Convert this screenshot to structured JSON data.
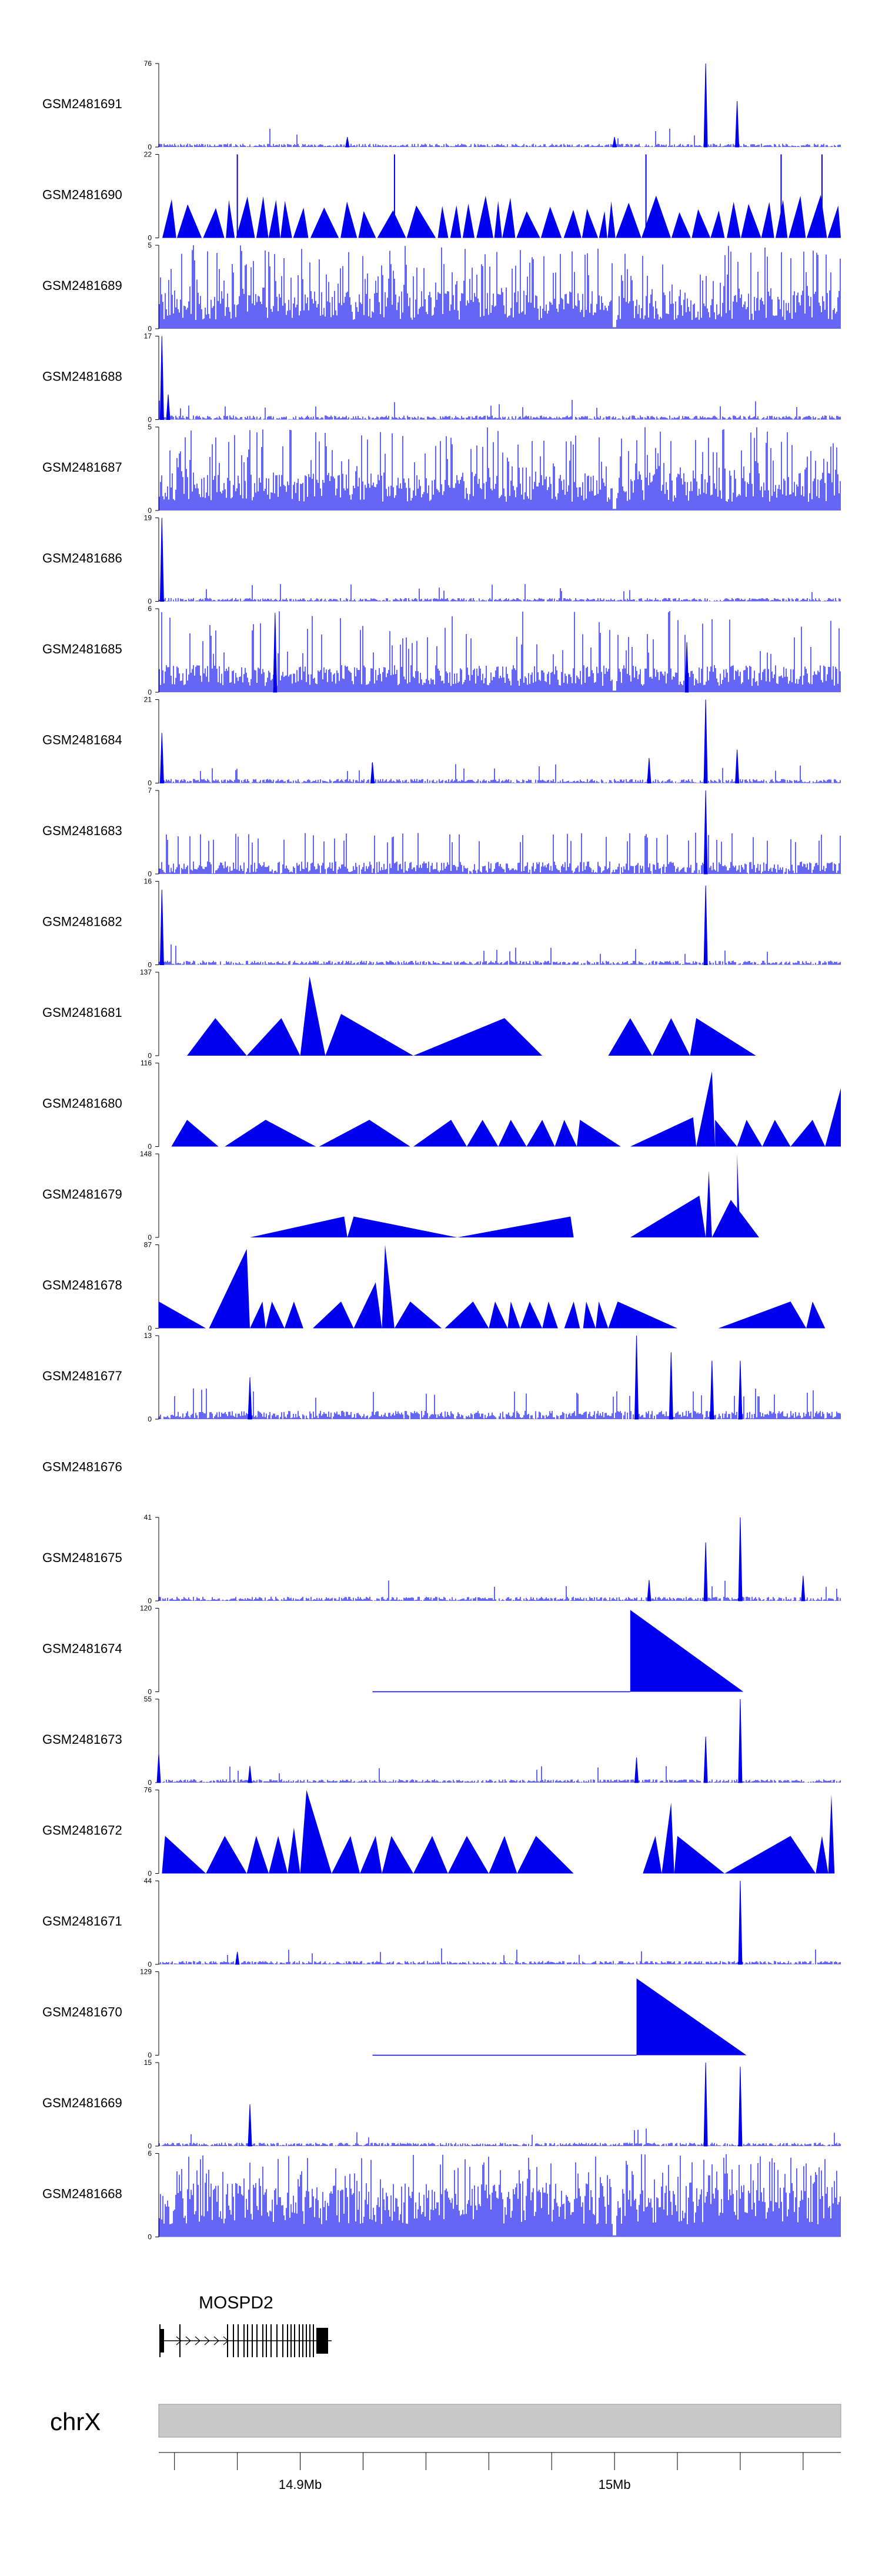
{
  "chart_data": {
    "type": "area",
    "title": "",
    "genome_region": {
      "chromosome": "chrX",
      "start_mb": 14.855,
      "end_mb": 15.072
    },
    "colors": {
      "signal": "#0000ee",
      "axis": "#000000",
      "ideogram": "#c8c8c8",
      "gene": "#000000"
    },
    "tracks": [
      {
        "name": "GSM2481691",
        "ymax": "76",
        "ymin": "0",
        "pattern": "noise",
        "base": 0.04,
        "spike_p": 0.01,
        "peaks": [
          [
            14.915,
            0.12
          ],
          [
            15.0,
            0.12
          ],
          [
            15.029,
            1.0
          ],
          [
            15.039,
            0.55
          ]
        ]
      },
      {
        "name": "GSM2481690",
        "ymax": "22",
        "ymin": "0",
        "pattern": "triangles",
        "n": 48,
        "peaks": [
          [
            14.88,
            1.0
          ],
          [
            14.93,
            1.0
          ],
          [
            15.01,
            1.0
          ],
          [
            15.053,
            1.0
          ],
          [
            15.066,
            1.0
          ]
        ]
      },
      {
        "name": "GSM2481689",
        "ymax": "5",
        "ymin": "0",
        "pattern": "dense",
        "base": 0.35,
        "spike_p": 0.3,
        "peaks": []
      },
      {
        "name": "GSM2481688",
        "ymax": "17",
        "ymin": "0",
        "pattern": "noise",
        "base": 0.05,
        "spike_p": 0.02,
        "peaks": [
          [
            14.856,
            1.0
          ],
          [
            14.858,
            0.3
          ]
        ]
      },
      {
        "name": "GSM2481687",
        "ymax": "5",
        "ymin": "0",
        "pattern": "dense",
        "base": 0.35,
        "spike_p": 0.25,
        "peaks": []
      },
      {
        "name": "GSM2481686",
        "ymax": "19",
        "ymin": "0",
        "pattern": "noise",
        "base": 0.04,
        "spike_p": 0.02,
        "peaks": [
          [
            14.856,
            1.0
          ]
        ]
      },
      {
        "name": "GSM2481685",
        "ymax": "6",
        "ymin": "0",
        "pattern": "dense",
        "base": 0.25,
        "spike_p": 0.12,
        "peaks": [
          [
            14.892,
            0.95
          ],
          [
            15.023,
            0.6
          ]
        ]
      },
      {
        "name": "GSM2481684",
        "ymax": "21",
        "ymin": "0",
        "pattern": "noise",
        "base": 0.05,
        "spike_p": 0.02,
        "peaks": [
          [
            14.856,
            0.6
          ],
          [
            14.923,
            0.25
          ],
          [
            15.011,
            0.3
          ],
          [
            15.029,
            1.0
          ],
          [
            15.039,
            0.4
          ]
        ]
      },
      {
        "name": "GSM2481683",
        "ymax": "7",
        "ymin": "0",
        "pattern": "noise",
        "base": 0.15,
        "spike_p": 0.1,
        "peaks": [
          [
            15.029,
            1.0
          ]
        ]
      },
      {
        "name": "GSM2481682",
        "ymax": "16",
        "ymin": "0",
        "pattern": "noise",
        "base": 0.05,
        "spike_p": 0.02,
        "peaks": [
          [
            14.856,
            0.9
          ],
          [
            15.029,
            0.95
          ]
        ]
      },
      {
        "name": "GSM2481681",
        "ymax": "137",
        "ymin": "0",
        "pattern": "explicit",
        "shapes": [
          [
            14.864,
            14.873,
            14.883,
            0.45
          ],
          [
            14.883,
            14.894,
            14.9,
            0.45
          ],
          [
            14.9,
            14.903,
            14.908,
            0.95
          ],
          [
            14.908,
            14.913,
            14.936,
            0.5
          ],
          [
            14.936,
            14.965,
            14.977,
            0.45
          ],
          [
            14.998,
            15.005,
            15.012,
            0.45
          ],
          [
            15.012,
            15.018,
            15.024,
            0.45
          ],
          [
            15.024,
            15.026,
            15.045,
            0.45
          ]
        ]
      },
      {
        "name": "GSM2481680",
        "ymax": "116",
        "ymin": "0",
        "pattern": "explicit",
        "shapes": [
          [
            14.859,
            14.864,
            14.874,
            0.32
          ],
          [
            14.876,
            14.889,
            14.905,
            0.32
          ],
          [
            14.906,
            14.922,
            14.935,
            0.32
          ],
          [
            14.936,
            14.948,
            14.953,
            0.32
          ],
          [
            14.953,
            14.958,
            14.963,
            0.32
          ],
          [
            14.963,
            14.967,
            14.972,
            0.32
          ],
          [
            14.972,
            14.977,
            14.981,
            0.32
          ],
          [
            14.981,
            14.984,
            14.988,
            0.32
          ],
          [
            14.988,
            14.989,
            15.002,
            0.32
          ],
          [
            15.005,
            15.025,
            15.026,
            0.35
          ],
          [
            15.026,
            15.031,
            15.032,
            0.9
          ],
          [
            15.032,
            15.032,
            15.039,
            0.32
          ],
          [
            15.039,
            15.042,
            15.047,
            0.32
          ],
          [
            15.047,
            15.051,
            15.056,
            0.32
          ],
          [
            15.056,
            15.063,
            15.067,
            0.32
          ],
          [
            15.067,
            15.072,
            15.072,
            0.7
          ]
        ]
      },
      {
        "name": "GSM2481679",
        "ymax": "148",
        "ymin": "0",
        "pattern": "explicit",
        "shapes": [
          [
            14.884,
            14.914,
            14.915,
            0.25
          ],
          [
            14.915,
            14.917,
            14.95,
            0.25
          ],
          [
            14.95,
            14.986,
            14.987,
            0.25
          ],
          [
            15.005,
            15.027,
            15.029,
            0.5
          ],
          [
            15.029,
            15.03,
            15.031,
            0.8
          ],
          [
            15.031,
            15.037,
            15.046,
            0.45
          ],
          [
            15.039,
            15.039,
            15.04,
            1.0
          ]
        ]
      },
      {
        "name": "GSM2481678",
        "ymax": "87",
        "ymin": "0",
        "pattern": "explicit",
        "shapes": [
          [
            14.855,
            14.855,
            14.87,
            0.32
          ],
          [
            14.871,
            14.883,
            14.884,
            0.95
          ],
          [
            14.884,
            14.888,
            14.889,
            0.32
          ],
          [
            14.889,
            14.891,
            14.895,
            0.32
          ],
          [
            14.895,
            14.898,
            14.901,
            0.32
          ],
          [
            14.904,
            14.913,
            14.917,
            0.32
          ],
          [
            14.917,
            14.924,
            14.926,
            0.55
          ],
          [
            14.926,
            14.927,
            14.93,
            1.0
          ],
          [
            14.93,
            14.935,
            14.945,
            0.32
          ],
          [
            14.946,
            14.955,
            14.96,
            0.32
          ],
          [
            14.96,
            14.962,
            14.966,
            0.32
          ],
          [
            14.966,
            14.967,
            14.97,
            0.32
          ],
          [
            14.97,
            14.973,
            14.977,
            0.32
          ],
          [
            14.977,
            14.979,
            14.982,
            0.32
          ],
          [
            14.984,
            14.987,
            14.989,
            0.32
          ],
          [
            14.99,
            14.991,
            14.994,
            0.32
          ],
          [
            14.994,
            14.995,
            14.998,
            0.32
          ],
          [
            14.998,
            15.001,
            15.02,
            0.32
          ],
          [
            15.033,
            15.056,
            15.061,
            0.32
          ],
          [
            15.061,
            15.063,
            15.067,
            0.32
          ]
        ]
      },
      {
        "name": "GSM2481677",
        "ymax": "13",
        "ymin": "0",
        "pattern": "noise",
        "base": 0.1,
        "spike_p": 0.06,
        "peaks": [
          [
            14.884,
            0.5
          ],
          [
            15.007,
            1.0
          ],
          [
            15.018,
            0.8
          ],
          [
            15.031,
            0.7
          ],
          [
            15.04,
            0.7
          ]
        ]
      },
      {
        "name": "GSM2481676",
        "ymax": "",
        "ymin": "",
        "pattern": "empty"
      },
      {
        "name": "GSM2481675",
        "ymax": "41",
        "ymin": "0",
        "pattern": "noise",
        "base": 0.05,
        "spike_p": 0.02,
        "peaks": [
          [
            15.011,
            0.25
          ],
          [
            15.029,
            0.7
          ],
          [
            15.04,
            1.0
          ],
          [
            15.06,
            0.3
          ]
        ]
      },
      {
        "name": "GSM2481674",
        "ymax": "120",
        "ymin": "0",
        "pattern": "explicit",
        "shapes": [
          [
            15.005,
            15.005,
            15.041,
            0.98
          ]
        ],
        "lines": [
          [
            14.923,
            15.005
          ]
        ]
      },
      {
        "name": "GSM2481673",
        "ymax": "55",
        "ymin": "0",
        "pattern": "noise",
        "base": 0.04,
        "spike_p": 0.02,
        "peaks": [
          [
            14.855,
            0.35
          ],
          [
            14.884,
            0.2
          ],
          [
            15.007,
            0.3
          ],
          [
            15.029,
            0.55
          ],
          [
            15.04,
            1.0
          ]
        ]
      },
      {
        "name": "GSM2481672",
        "ymax": "76",
        "ymin": "0",
        "pattern": "explicit",
        "shapes": [
          [
            14.856,
            14.857,
            14.87,
            0.45
          ],
          [
            14.87,
            14.876,
            14.883,
            0.45
          ],
          [
            14.883,
            14.886,
            14.89,
            0.45
          ],
          [
            14.89,
            14.893,
            14.896,
            0.45
          ],
          [
            14.896,
            14.898,
            14.9,
            0.55
          ],
          [
            14.9,
            14.902,
            14.91,
            1.0
          ],
          [
            14.91,
            14.916,
            14.919,
            0.45
          ],
          [
            14.919,
            14.924,
            14.926,
            0.45
          ],
          [
            14.926,
            14.929,
            14.936,
            0.45
          ],
          [
            14.936,
            14.942,
            14.947,
            0.45
          ],
          [
            14.947,
            14.953,
            14.96,
            0.45
          ],
          [
            14.96,
            14.965,
            14.969,
            0.45
          ],
          [
            14.969,
            14.975,
            14.987,
            0.45
          ],
          [
            15.009,
            15.013,
            15.015,
            0.45
          ],
          [
            15.015,
            15.018,
            15.019,
            0.85
          ],
          [
            15.019,
            15.02,
            15.035,
            0.45
          ],
          [
            15.035,
            15.056,
            15.064,
            0.45
          ],
          [
            15.064,
            15.066,
            15.068,
            0.45
          ],
          [
            15.068,
            15.069,
            15.07,
            0.95
          ]
        ]
      },
      {
        "name": "GSM2481671",
        "ymax": "44",
        "ymin": "0",
        "pattern": "noise",
        "base": 0.04,
        "spike_p": 0.02,
        "peaks": [
          [
            15.04,
            1.0
          ],
          [
            14.88,
            0.15
          ]
        ]
      },
      {
        "name": "GSM2481670",
        "ymax": "129",
        "ymin": "0",
        "pattern": "explicit",
        "shapes": [
          [
            15.007,
            15.007,
            15.042,
            0.92
          ]
        ],
        "lines": [
          [
            14.923,
            15.007
          ]
        ]
      },
      {
        "name": "GSM2481669",
        "ymax": "15",
        "ymin": "0",
        "pattern": "noise",
        "base": 0.04,
        "spike_p": 0.02,
        "peaks": [
          [
            14.884,
            0.5
          ],
          [
            15.029,
            1.0
          ],
          [
            15.04,
            0.95
          ]
        ]
      },
      {
        "name": "GSM2481668",
        "ymax": "6",
        "ymin": "0",
        "pattern": "dense",
        "base": 0.5,
        "spike_p": 0.25,
        "peaks": []
      }
    ],
    "gene": {
      "name": "MOSPD2",
      "start_mb": 14.856,
      "end_mb": 14.91,
      "strand": "+"
    },
    "chromosome_label": "chrX",
    "x_axis": {
      "ticks_mb": [
        14.86,
        14.88,
        14.9,
        14.92,
        14.94,
        14.96,
        14.98,
        15.0,
        15.02,
        15.04,
        15.06
      ],
      "labels": [
        {
          "value": 14.9,
          "text": "14.9Mb"
        },
        {
          "value": 15.0,
          "text": "15Mb"
        }
      ]
    }
  }
}
